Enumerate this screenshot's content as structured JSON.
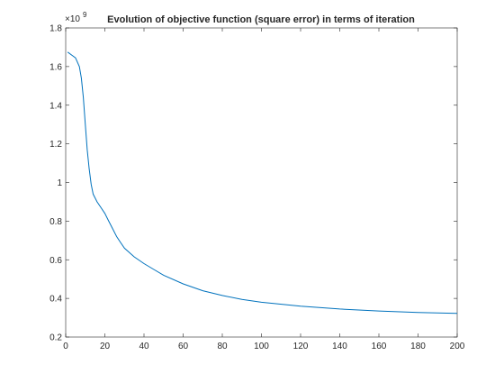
{
  "chart_data": {
    "type": "line",
    "title": "Evolution of objective function (square error) in terms of iteration",
    "xlabel": "",
    "ylabel": "",
    "xlim": [
      0,
      200
    ],
    "ylim": [
      0.2,
      1.8
    ],
    "y_multiplier_label": "×10",
    "y_multiplier_exponent": "9",
    "xticks": [
      0,
      20,
      40,
      60,
      80,
      100,
      120,
      140,
      160,
      180,
      200
    ],
    "yticks": [
      0.2,
      0.4,
      0.6,
      0.8,
      1,
      1.2,
      1.4,
      1.6,
      1.8
    ],
    "xtick_labels": [
      "0",
      "20",
      "40",
      "60",
      "80",
      "100",
      "120",
      "140",
      "160",
      "180",
      "200"
    ],
    "ytick_labels": [
      "0.2",
      "0.4",
      "0.6",
      "0.8",
      "1",
      "1.2",
      "1.4",
      "1.6",
      "1.8"
    ],
    "grid": false,
    "series": [
      {
        "color": "#0072bd",
        "x": [
          1,
          3,
          5,
          7,
          8,
          9,
          10,
          11,
          12,
          13,
          14,
          16,
          18,
          20,
          22,
          24,
          26,
          28,
          30,
          35,
          40,
          45,
          50,
          60,
          70,
          80,
          90,
          100,
          120,
          140,
          160,
          180,
          200
        ],
        "y": [
          1.675,
          1.66,
          1.645,
          1.6,
          1.54,
          1.44,
          1.3,
          1.17,
          1.07,
          0.99,
          0.94,
          0.9,
          0.87,
          0.84,
          0.8,
          0.76,
          0.72,
          0.69,
          0.66,
          0.615,
          0.58,
          0.55,
          0.52,
          0.475,
          0.44,
          0.415,
          0.395,
          0.38,
          0.36,
          0.345,
          0.335,
          0.327,
          0.322
        ]
      }
    ]
  }
}
